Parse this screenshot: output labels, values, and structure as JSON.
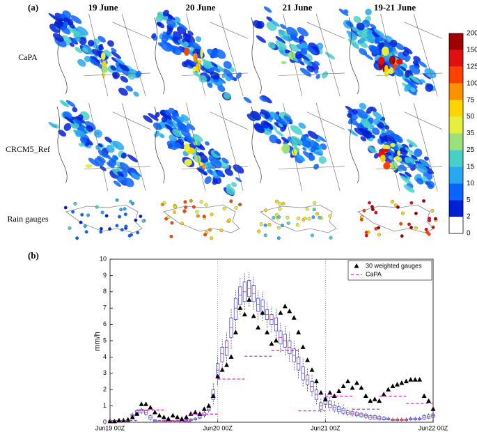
{
  "panel_a": {
    "label": "(a)",
    "columns": [
      "19 June",
      "20 June",
      "21 June",
      "19-21 June"
    ],
    "rows": [
      "CaPA",
      "CRCM5_Ref",
      "Rain gauges"
    ],
    "colorbar": {
      "labels": [
        "200",
        "150",
        "125",
        "100",
        "75",
        "50",
        "35",
        "25",
        "15",
        "10",
        "5",
        "2",
        "0"
      ],
      "colors": [
        "#a00000",
        "#e01010",
        "#ff4000",
        "#ff9000",
        "#ffd400",
        "#e6f03c",
        "#9be07a",
        "#48d0c8",
        "#28a8f0",
        "#0a64ff",
        "#0020d8",
        "#ffffff"
      ]
    }
  },
  "chart_data": {
    "type": "box",
    "panel_label": "(b)",
    "ylabel": "mm/h",
    "x": [
      0,
      1,
      2,
      3,
      4,
      5,
      6,
      7,
      8,
      9,
      10,
      11,
      12,
      13,
      14,
      15,
      16,
      17,
      18,
      19,
      20,
      21,
      22,
      23,
      24,
      25,
      26,
      27,
      28,
      29,
      30,
      31,
      32,
      33,
      34,
      35,
      36,
      37,
      38,
      39,
      40,
      41,
      42,
      43,
      44,
      45,
      46,
      47,
      48,
      49,
      50,
      51,
      52,
      53,
      54,
      55,
      56,
      57,
      58,
      59,
      60,
      61,
      62,
      63,
      64,
      65,
      66,
      67,
      68,
      69,
      70,
      71,
      72
    ],
    "xlim": [
      0,
      72
    ],
    "xticks": [
      {
        "value": 0,
        "label": "Jun19 00Z"
      },
      {
        "value": 24,
        "label": "Jun20 00Z"
      },
      {
        "value": 48,
        "label": "Jun21 00Z"
      },
      {
        "value": 72,
        "label": "Jun22 00Z"
      }
    ],
    "vlines": [
      24,
      48
    ],
    "ylim": [
      0,
      10
    ],
    "yticks": [
      0,
      1,
      2,
      3,
      4,
      5,
      6,
      7,
      8,
      9,
      10
    ],
    "legend": "upper right",
    "boxes": {
      "color": "#4a4af0",
      "median_color": "#e02020",
      "low": [
        0,
        0,
        0,
        0,
        0,
        0.2,
        0.4,
        0.5,
        0.4,
        0.1,
        0,
        0,
        0,
        0,
        0,
        0,
        0,
        0,
        0.05,
        0.1,
        0.2,
        0.3,
        0.6,
        1.1,
        2.3,
        3.2,
        3.6,
        4.5,
        5.6,
        6.6,
        6.9,
        7.1,
        6.9,
        6.3,
        6.2,
        5.8,
        5.5,
        5.0,
        4.3,
        4.1,
        3.7,
        3.2,
        2.7,
        2.2,
        1.9,
        1.6,
        1.1,
        0.6,
        0.9,
        0.7,
        0.6,
        0.5,
        0.45,
        0.4,
        0.35,
        0.3,
        0.25,
        0.2,
        0.15,
        0.15,
        0.1,
        0.1,
        0.1,
        0.05,
        0.05,
        0.05,
        0.05,
        0.1,
        0.1,
        0.1,
        0.15,
        0.2,
        0.2
      ],
      "q1": [
        0,
        0,
        0,
        0,
        0.05,
        0.3,
        0.5,
        0.6,
        0.5,
        0.2,
        0.05,
        0,
        0,
        0,
        0,
        0,
        0,
        0.05,
        0.1,
        0.15,
        0.25,
        0.4,
        0.7,
        1.4,
        2.7,
        3.7,
        4.1,
        5.2,
        6.3,
        7.2,
        7.4,
        7.7,
        7.4,
        6.8,
        6.7,
        6.3,
        6.0,
        5.6,
        4.8,
        4.6,
        4.2,
        3.7,
        3.2,
        2.6,
        2.3,
        1.9,
        1.4,
        0.8,
        1.1,
        0.9,
        0.75,
        0.65,
        0.55,
        0.5,
        0.45,
        0.4,
        0.35,
        0.3,
        0.2,
        0.2,
        0.15,
        0.15,
        0.15,
        0.1,
        0.1,
        0.1,
        0.1,
        0.15,
        0.15,
        0.15,
        0.2,
        0.25,
        0.3
      ],
      "median": [
        0.05,
        0.05,
        0.05,
        0.05,
        0.1,
        0.4,
        0.6,
        0.7,
        0.6,
        0.3,
        0.1,
        0.05,
        0.05,
        0.05,
        0.05,
        0.05,
        0.05,
        0.1,
        0.15,
        0.2,
        0.3,
        0.5,
        0.8,
        1.7,
        3.2,
        4.2,
        4.6,
        5.8,
        7.0,
        7.8,
        8.0,
        8.2,
        7.9,
        7.2,
        7.1,
        6.6,
        6.3,
        6.0,
        5.2,
        5.0,
        4.6,
        4.1,
        3.6,
        3.0,
        2.6,
        2.2,
        1.7,
        1.0,
        1.3,
        1.1,
        0.9,
        0.8,
        0.7,
        0.6,
        0.55,
        0.5,
        0.45,
        0.4,
        0.3,
        0.3,
        0.25,
        0.2,
        0.2,
        0.15,
        0.15,
        0.15,
        0.15,
        0.2,
        0.2,
        0.2,
        0.3,
        0.35,
        0.4
      ],
      "q3": [
        0.1,
        0.1,
        0.1,
        0.1,
        0.15,
        0.5,
        0.7,
        0.8,
        0.7,
        0.4,
        0.15,
        0.1,
        0.1,
        0.1,
        0.1,
        0.1,
        0.1,
        0.15,
        0.2,
        0.25,
        0.4,
        0.6,
        0.9,
        2.0,
        3.6,
        4.6,
        5.0,
        6.4,
        7.6,
        8.3,
        8.6,
        8.7,
        8.4,
        7.6,
        7.5,
        6.9,
        6.6,
        6.4,
        5.6,
        5.4,
        5.0,
        4.5,
        4.0,
        3.4,
        2.9,
        2.5,
        2.0,
        1.2,
        1.5,
        1.3,
        1.05,
        0.95,
        0.85,
        0.7,
        0.65,
        0.6,
        0.55,
        0.5,
        0.4,
        0.4,
        0.35,
        0.3,
        0.25,
        0.2,
        0.2,
        0.2,
        0.2,
        0.25,
        0.25,
        0.25,
        0.4,
        0.45,
        0.5
      ],
      "high": [
        0.15,
        0.15,
        0.15,
        0.15,
        0.2,
        0.6,
        0.8,
        0.9,
        0.8,
        0.5,
        0.2,
        0.15,
        0.15,
        0.15,
        0.15,
        0.15,
        0.15,
        0.2,
        0.25,
        0.3,
        0.5,
        0.7,
        1.0,
        2.4,
        4.1,
        5.1,
        5.5,
        7.0,
        8.1,
        8.9,
        9.2,
        9.2,
        8.9,
        8.1,
        8.0,
        7.4,
        7.1,
        7.0,
        6.1,
        5.9,
        5.5,
        5.0,
        4.5,
        3.9,
        3.3,
        2.9,
        2.4,
        1.5,
        1.8,
        1.6,
        1.3,
        1.2,
        1.1,
        0.9,
        0.85,
        0.8,
        0.7,
        0.65,
        0.55,
        0.55,
        0.45,
        0.4,
        0.35,
        0.3,
        0.3,
        0.3,
        0.3,
        0.35,
        0.35,
        0.35,
        0.5,
        0.55,
        0.6
      ]
    },
    "series": [
      {
        "name": "30 weighted gauges",
        "marker": "triangle",
        "color": "#000000",
        "values": [
          0.05,
          0.05,
          0.1,
          0.1,
          0.15,
          0.3,
          0.5,
          1.1,
          1.1,
          0.9,
          0.6,
          0.4,
          0.3,
          0.2,
          0.4,
          0.3,
          0.2,
          0.3,
          0.5,
          0.6,
          0.5,
          0.8,
          1.0,
          1.6,
          2.8,
          3.2,
          3.5,
          4.0,
          5.5,
          7.0,
          6.6,
          7.5,
          6.5,
          5.8,
          6.7,
          5.5,
          4.8,
          5.0,
          6.7,
          7.1,
          6.8,
          6.4,
          5.5,
          4.6,
          3.8,
          3.2,
          2.5,
          1.8,
          1.4,
          1.8,
          1.6,
          1.9,
          2.2,
          2.5,
          2.1,
          2.4,
          2.1,
          1.6,
          1.3,
          1.4,
          1.3,
          1.7,
          2.0,
          2.2,
          2.3,
          2.4,
          2.5,
          2.6,
          2.6,
          2.6,
          1.6,
          1.3,
          0.8
        ]
      },
      {
        "name": "CaPA",
        "marker": "dash",
        "color": "#e020e0",
        "x": [
          0,
          6,
          12,
          18,
          24,
          30,
          36,
          42,
          48,
          54,
          60,
          66
        ],
        "x_end": [
          6,
          12,
          18,
          24,
          30,
          36,
          42,
          48,
          54,
          60,
          66,
          72
        ],
        "values": [
          0.1,
          0.75,
          0.05,
          0.5,
          2.65,
          4.05,
          4.4,
          0.7,
          1.6,
          0.8,
          1.6,
          1.15
        ]
      }
    ]
  }
}
